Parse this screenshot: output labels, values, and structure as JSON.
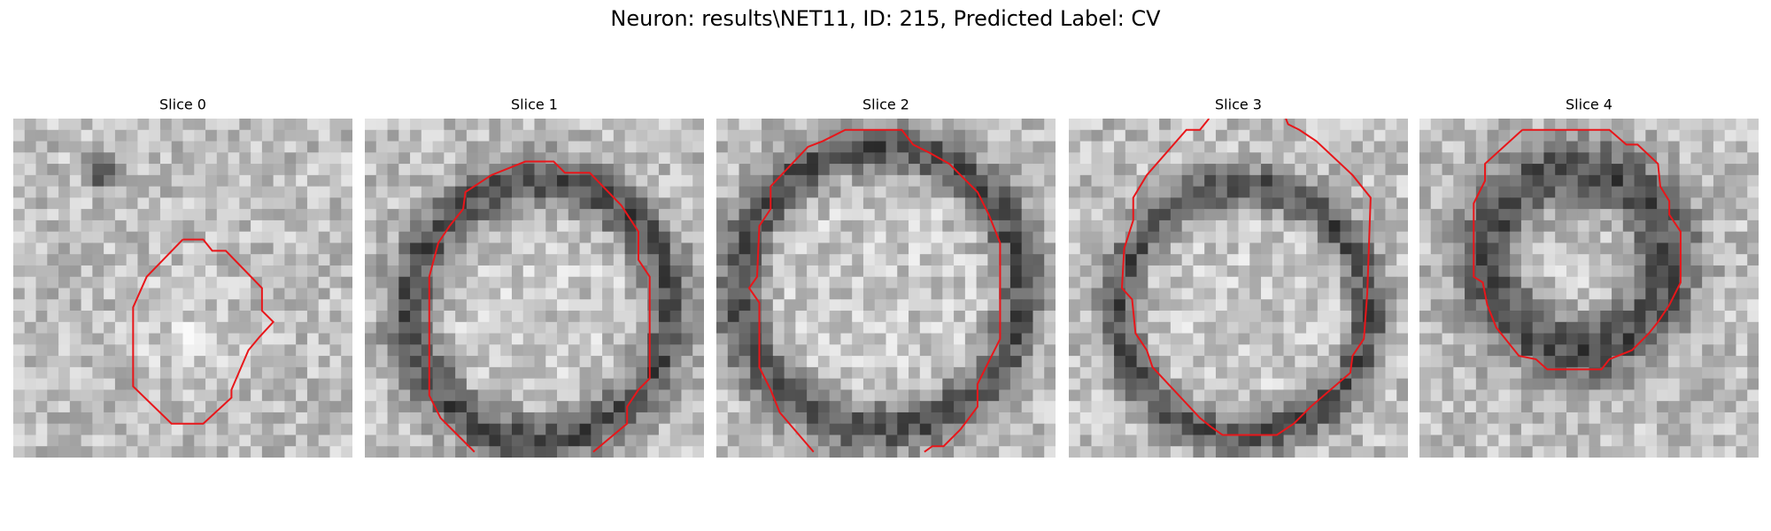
{
  "title": "Neuron: results\\NET11, ID: 215, Predicted Label: CV",
  "panels": [
    {
      "title": "Slice 0"
    },
    {
      "title": "Slice 1"
    },
    {
      "title": "Slice 2"
    },
    {
      "title": "Slice 3"
    },
    {
      "title": "Slice 4"
    }
  ]
}
